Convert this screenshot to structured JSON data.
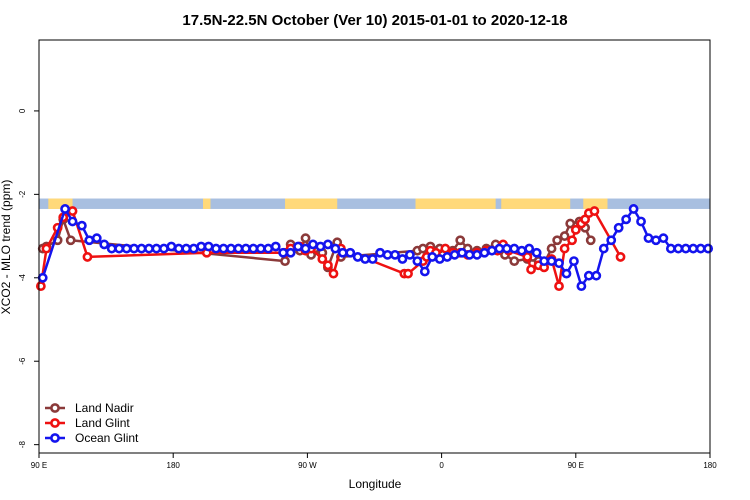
{
  "chart_data": {
    "type": "line",
    "title": "17.5N-22.5N October (Ver 10)   2015-01-01 to 2020-12-18",
    "xlabel": "Longitude",
    "ylabel": "XCO2 - MLO trend (ppm)",
    "xlim": [
      0,
      360
    ],
    "ylim": [
      -8.2,
      1.7
    ],
    "x_ticks": [
      0,
      72,
      144,
      216,
      288,
      360
    ],
    "x_tick_labels": [
      "90 E",
      "180",
      "90 W",
      "0",
      "90 E",
      "180"
    ],
    "y_ticks": [
      -8,
      -6,
      -4,
      -2,
      0
    ],
    "y_tick_labels": [
      "-8",
      "-6",
      "-4",
      "-2",
      "0"
    ],
    "land_band": {
      "y_range": [
        -2.35,
        -2.1
      ],
      "ocean_color": "#a8bfe0",
      "land_color": "#ffd97a",
      "land_segments": [
        [
          5,
          18
        ],
        [
          88,
          92
        ],
        [
          132,
          160
        ],
        [
          202,
          245
        ],
        [
          248,
          285
        ],
        [
          292,
          305
        ]
      ]
    },
    "legend": {
      "position": "bottom-left"
    },
    "series": [
      {
        "name": "Land Nadir",
        "color": "#8b3a3a",
        "x": [
          2,
          4,
          10,
          13,
          17,
          132,
          135,
          140,
          143,
          146,
          148,
          152,
          155,
          160,
          162,
          203,
          206,
          210,
          215,
          222,
          226,
          230,
          235,
          240,
          245,
          250,
          255,
          262,
          265,
          268,
          271,
          275,
          278,
          282,
          285,
          290,
          293,
          296
        ],
        "y": [
          -3.3,
          -3.25,
          -3.1,
          -2.6,
          -3.1,
          -3.6,
          -3.2,
          -3.35,
          -3.05,
          -3.45,
          -3.3,
          -3.4,
          -3.75,
          -3.15,
          -3.5,
          -3.35,
          -3.3,
          -3.25,
          -3.3,
          -3.35,
          -3.1,
          -3.3,
          -3.35,
          -3.3,
          -3.2,
          -3.45,
          -3.6,
          -3.55,
          -3.5,
          -3.6,
          -3.65,
          -3.3,
          -3.1,
          -3.0,
          -2.7,
          -2.65,
          -2.8,
          -3.1
        ]
      },
      {
        "name": "Land Glint",
        "color": "#ee1111",
        "x": [
          1,
          4,
          10,
          13,
          18,
          26,
          90,
          132,
          135,
          140,
          143,
          146,
          152,
          155,
          158,
          162,
          196,
          198,
          206,
          208,
          210,
          213,
          218,
          222,
          226,
          230,
          235,
          240,
          246,
          249,
          252,
          262,
          264,
          268,
          271,
          275,
          279,
          282,
          286,
          288,
          291,
          293,
          295,
          298,
          312
        ],
        "y": [
          -4.2,
          -3.3,
          -2.8,
          -2.55,
          -2.4,
          -3.5,
          -3.4,
          -3.4,
          -3.3,
          -3.25,
          -3.35,
          -3.3,
          -3.55,
          -3.7,
          -3.9,
          -3.3,
          -3.9,
          -3.9,
          -3.6,
          -3.5,
          -3.35,
          -3.4,
          -3.3,
          -3.4,
          -3.4,
          -3.45,
          -3.4,
          -3.35,
          -3.35,
          -3.2,
          -3.35,
          -3.5,
          -3.8,
          -3.7,
          -3.75,
          -3.55,
          -4.2,
          -3.3,
          -3.1,
          -2.85,
          -2.7,
          -2.6,
          -2.45,
          -2.4,
          -3.5
        ]
      },
      {
        "name": "Ocean Glint",
        "color": "#1414ee",
        "x": [
          2,
          14,
          18,
          23,
          27,
          31,
          35,
          39,
          43,
          47,
          51,
          55,
          59,
          63,
          67,
          71,
          75,
          79,
          83,
          87,
          91,
          95,
          99,
          103,
          107,
          111,
          115,
          119,
          123,
          127,
          131,
          135,
          139,
          143,
          147,
          151,
          155,
          159,
          163,
          167,
          171,
          175,
          179,
          183,
          187,
          191,
          195,
          199,
          203,
          207,
          211,
          215,
          219,
          223,
          227,
          231,
          235,
          239,
          243,
          247,
          251,
          255,
          259,
          263,
          267,
          271,
          275,
          279,
          283,
          287,
          291,
          295,
          299,
          303,
          307,
          311,
          315,
          319,
          323,
          327,
          331,
          335,
          339,
          343,
          347,
          351,
          355,
          359
        ],
        "y": [
          -4.0,
          -2.35,
          -2.65,
          -2.75,
          -3.1,
          -3.05,
          -3.2,
          -3.3,
          -3.3,
          -3.3,
          -3.3,
          -3.3,
          -3.3,
          -3.3,
          -3.3,
          -3.25,
          -3.3,
          -3.3,
          -3.3,
          -3.25,
          -3.25,
          -3.3,
          -3.3,
          -3.3,
          -3.3,
          -3.3,
          -3.3,
          -3.3,
          -3.3,
          -3.25,
          -3.4,
          -3.4,
          -3.25,
          -3.3,
          -3.2,
          -3.25,
          -3.2,
          -3.3,
          -3.4,
          -3.4,
          -3.5,
          -3.55,
          -3.55,
          -3.4,
          -3.45,
          -3.45,
          -3.55,
          -3.45,
          -3.6,
          -3.85,
          -3.5,
          -3.55,
          -3.5,
          -3.45,
          -3.4,
          -3.45,
          -3.45,
          -3.4,
          -3.35,
          -3.3,
          -3.3,
          -3.3,
          -3.35,
          -3.3,
          -3.4,
          -3.6,
          -3.6,
          -3.65,
          -3.9,
          -3.6,
          -4.2,
          -3.95,
          -3.95,
          -3.3,
          -3.1,
          -2.8,
          -2.6,
          -2.35,
          -2.65,
          -3.05,
          -3.1,
          -3.05,
          -3.3,
          -3.3,
          -3.3,
          -3.3,
          -3.3,
          -3.3
        ]
      }
    ]
  }
}
